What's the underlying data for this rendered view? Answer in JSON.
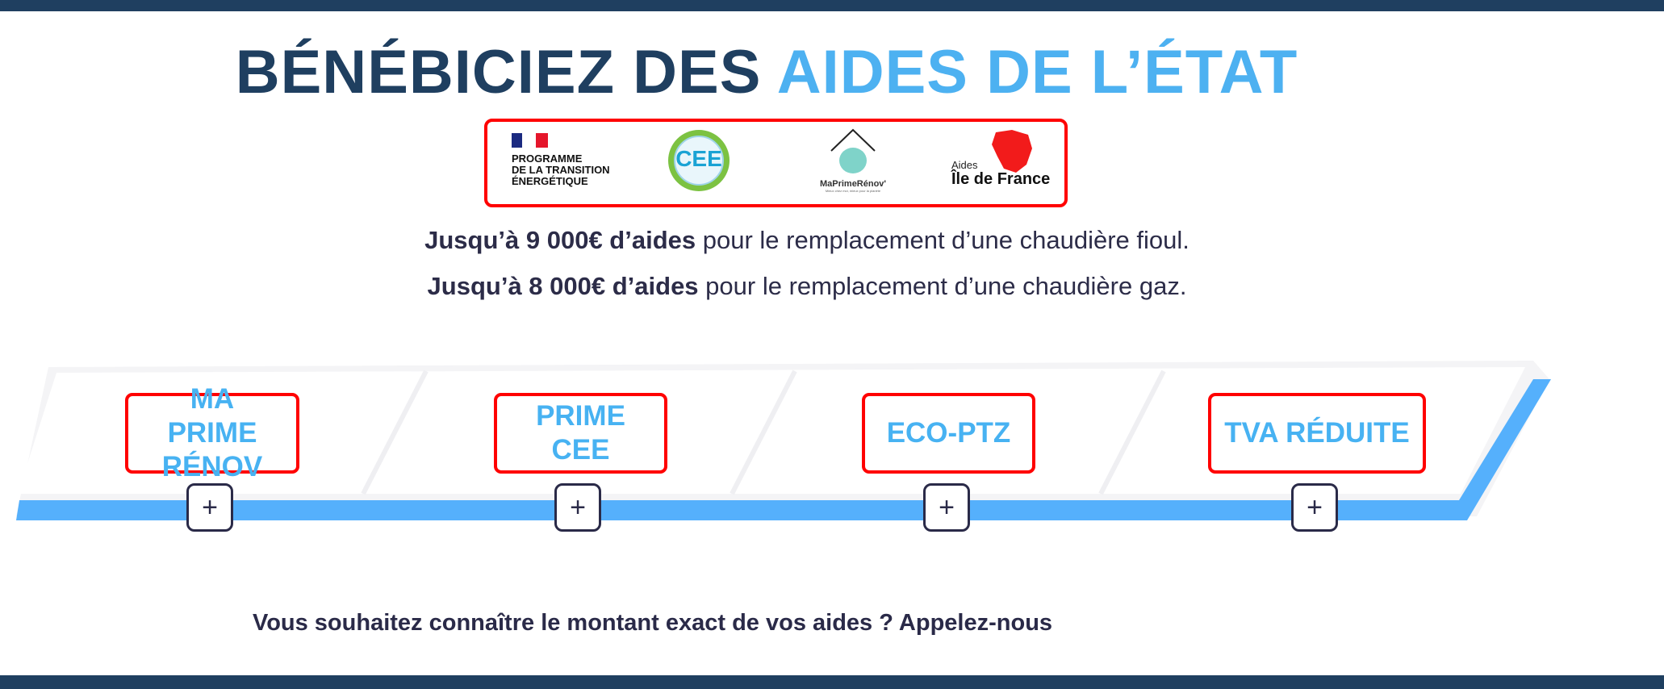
{
  "colors": {
    "navy": "#1f3f60",
    "accent_blue": "#4db1f1",
    "red_outline": "#ff0000",
    "text": "#2c2c48"
  },
  "title": {
    "part1": "BÉNÉBICIEZ DES",
    "part2": "AIDES DE L’ÉTAT"
  },
  "logos": {
    "programme": [
      "PROGRAMME",
      "DE LA TRANSITION",
      "ÉNERGÉTIQUE"
    ],
    "cee": "CEE",
    "maprimerenov": "MaPrimeRénov'",
    "maprimerenov_tagline": "Mieux chez moi, mieux pour la planète",
    "idf_small": "Aides",
    "idf_big": "Île de France"
  },
  "subtitle": [
    {
      "bold": "Jusqu’à 9 000€ d’aides",
      "rest": " pour le remplacement d’une chaudière fioul."
    },
    {
      "bold": "Jusqu’à 8 000€ d’aides",
      "rest": " pour le remplacement d’une chaudière gaz."
    }
  ],
  "aids": [
    {
      "label": "MA PRIME RÉNOV",
      "expand_icon": "plus"
    },
    {
      "label": "PRIME CEE",
      "expand_icon": "plus"
    },
    {
      "label": "ECO-PTZ",
      "expand_icon": "plus"
    },
    {
      "label": "TVA RÉDUITE",
      "expand_icon": "plus"
    }
  ],
  "plus_symbol": "+",
  "cta": "Vous souhaitez connaître le montant exact de vos aides ? Appelez-nous"
}
